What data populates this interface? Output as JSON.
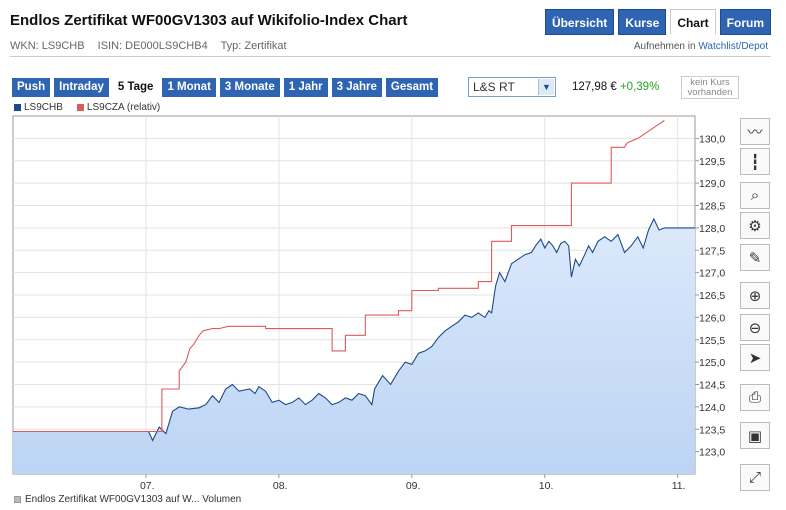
{
  "header": {
    "title": "Endlos Zertifikat WF00GV1303 auf Wikifolio-Index Chart",
    "wkn": "WKN: LS9CHB",
    "isin": "ISIN: DE000LS9CHB4",
    "typ": "Typ: Zertifikat"
  },
  "nav": {
    "tabs": [
      "Übersicht",
      "Kurse",
      "Chart",
      "Forum"
    ],
    "active": "Chart",
    "watch_prefix": "Aufnehmen in",
    "watch_link": "Watchlist/Depot"
  },
  "range_tabs": [
    "Push",
    "Intraday",
    "5 Tage",
    "1 Monat",
    "3 Monate",
    "1 Jahr",
    "3 Jahre",
    "Gesamt"
  ],
  "range_active": "5 Tage",
  "exchange": {
    "value": "L&S RT",
    "arrow": "▼"
  },
  "quote": {
    "price": "127,98 €",
    "change": "+0,39%"
  },
  "no_quote": {
    "line1": "kein Kurs",
    "line2": "vorhanden"
  },
  "legend": [
    {
      "name": "LS9CHB",
      "color": "#1c4a8c"
    },
    {
      "name": "LS9CZA (relativ)",
      "color": "#e05a5a"
    }
  ],
  "bottom_label": "Endlos Zertifikat WF00GV1303 auf W... Volumen",
  "tools": [
    "line-chart-icon",
    "ohlc-chart-icon",
    "indicator-icon",
    "settings-icon",
    "draw-tool-icon",
    "zoom-in-icon",
    "zoom-out-icon",
    "cursor-icon",
    "print-icon",
    "save-icon",
    "fullscreen-icon"
  ],
  "colors": {
    "primary_series": "#1c4a8c",
    "relative_series": "#e05a5a",
    "area_fill": "#c6daf5",
    "accent": "#2e64b2",
    "positive": "#27a327"
  },
  "chart_data": {
    "type": "line",
    "x_tick_labels": [
      "07.",
      "08.",
      "09.",
      "10.",
      "11."
    ],
    "x_ticks": [
      1,
      2,
      3,
      4,
      5
    ],
    "xlim": [
      0,
      5.13
    ],
    "ylim": [
      122.5,
      130.5
    ],
    "y_ticks": [
      "123,0",
      "123,5",
      "124,0",
      "124,5",
      "125,0",
      "125,5",
      "126,0",
      "126,5",
      "127,0",
      "127,5",
      "128,0",
      "128,5",
      "129,0",
      "129,5",
      "130,0"
    ],
    "y_tick_values": [
      123,
      123.5,
      124,
      124.5,
      125,
      125.5,
      126,
      126.5,
      127,
      127.5,
      128,
      128.5,
      129,
      129.5,
      130
    ],
    "grid": true,
    "series": [
      {
        "name": "LS9CHB",
        "area": true,
        "points": [
          [
            0,
            123.45
          ],
          [
            1.02,
            123.45
          ],
          [
            1.05,
            123.25
          ],
          [
            1.1,
            123.55
          ],
          [
            1.15,
            123.4
          ],
          [
            1.2,
            123.9
          ],
          [
            1.25,
            124.0
          ],
          [
            1.32,
            123.95
          ],
          [
            1.4,
            123.98
          ],
          [
            1.45,
            124.05
          ],
          [
            1.5,
            124.25
          ],
          [
            1.55,
            124.1
          ],
          [
            1.6,
            124.4
          ],
          [
            1.65,
            124.5
          ],
          [
            1.7,
            124.35
          ],
          [
            1.78,
            124.4
          ],
          [
            1.82,
            124.3
          ],
          [
            1.85,
            124.45
          ],
          [
            1.9,
            124.35
          ],
          [
            1.95,
            124.1
          ],
          [
            2.0,
            124.15
          ],
          [
            2.05,
            124.05
          ],
          [
            2.1,
            124.1
          ],
          [
            2.15,
            124.2
          ],
          [
            2.2,
            124.05
          ],
          [
            2.25,
            124.15
          ],
          [
            2.3,
            124.3
          ],
          [
            2.35,
            124.2
          ],
          [
            2.4,
            124.05
          ],
          [
            2.45,
            124.1
          ],
          [
            2.5,
            124.2
          ],
          [
            2.55,
            124.15
          ],
          [
            2.6,
            124.3
          ],
          [
            2.65,
            124.25
          ],
          [
            2.7,
            124.05
          ],
          [
            2.72,
            124.4
          ],
          [
            2.78,
            124.7
          ],
          [
            2.84,
            124.5
          ],
          [
            2.9,
            124.8
          ],
          [
            2.95,
            125.0
          ],
          [
            3.0,
            124.95
          ],
          [
            3.05,
            125.2
          ],
          [
            3.1,
            125.25
          ],
          [
            3.15,
            125.35
          ],
          [
            3.2,
            125.55
          ],
          [
            3.25,
            125.7
          ],
          [
            3.3,
            125.8
          ],
          [
            3.35,
            125.9
          ],
          [
            3.4,
            126.05
          ],
          [
            3.45,
            126.0
          ],
          [
            3.5,
            126.1
          ],
          [
            3.55,
            126.0
          ],
          [
            3.58,
            126.15
          ],
          [
            3.6,
            126.1
          ],
          [
            3.63,
            126.7
          ],
          [
            3.66,
            127.0
          ],
          [
            3.7,
            126.8
          ],
          [
            3.75,
            127.2
          ],
          [
            3.8,
            127.3
          ],
          [
            3.85,
            127.4
          ],
          [
            3.9,
            127.45
          ],
          [
            3.93,
            127.6
          ],
          [
            3.97,
            127.75
          ],
          [
            4.0,
            127.55
          ],
          [
            4.03,
            127.7
          ],
          [
            4.06,
            127.6
          ],
          [
            4.09,
            127.45
          ],
          [
            4.12,
            127.65
          ],
          [
            4.15,
            127.7
          ],
          [
            4.18,
            127.6
          ],
          [
            4.2,
            126.9
          ],
          [
            4.23,
            127.3
          ],
          [
            4.26,
            127.15
          ],
          [
            4.3,
            127.4
          ],
          [
            4.33,
            127.6
          ],
          [
            4.36,
            127.45
          ],
          [
            4.4,
            127.7
          ],
          [
            4.45,
            127.8
          ],
          [
            4.5,
            127.7
          ],
          [
            4.55,
            127.85
          ],
          [
            4.6,
            127.45
          ],
          [
            4.65,
            127.6
          ],
          [
            4.7,
            127.8
          ],
          [
            4.74,
            127.55
          ],
          [
            4.78,
            127.95
          ],
          [
            4.82,
            128.2
          ],
          [
            4.86,
            127.95
          ],
          [
            4.9,
            128.0
          ],
          [
            5.13,
            128.0
          ]
        ]
      },
      {
        "name": "LS9CZA (relativ)",
        "area": false,
        "points": [
          [
            0,
            123.45
          ],
          [
            1.12,
            123.45
          ],
          [
            1.12,
            124.4
          ],
          [
            1.25,
            124.4
          ],
          [
            1.25,
            124.8
          ],
          [
            1.3,
            125.0
          ],
          [
            1.33,
            125.3
          ],
          [
            1.36,
            125.4
          ],
          [
            1.4,
            125.6
          ],
          [
            1.43,
            125.7
          ],
          [
            1.5,
            125.75
          ],
          [
            1.55,
            125.75
          ],
          [
            1.62,
            125.8
          ],
          [
            1.9,
            125.8
          ],
          [
            1.9,
            125.75
          ],
          [
            2.4,
            125.75
          ],
          [
            2.4,
            125.25
          ],
          [
            2.5,
            125.25
          ],
          [
            2.5,
            125.6
          ],
          [
            2.65,
            125.6
          ],
          [
            2.65,
            126.05
          ],
          [
            2.9,
            126.05
          ],
          [
            2.9,
            126.15
          ],
          [
            3.0,
            126.15
          ],
          [
            3.0,
            126.6
          ],
          [
            3.2,
            126.6
          ],
          [
            3.2,
            126.65
          ],
          [
            3.5,
            126.65
          ],
          [
            3.5,
            126.8
          ],
          [
            3.6,
            126.8
          ],
          [
            3.6,
            127.7
          ],
          [
            3.75,
            127.7
          ],
          [
            3.75,
            128.05
          ],
          [
            4.2,
            128.05
          ],
          [
            4.2,
            129.0
          ],
          [
            4.5,
            129.0
          ],
          [
            4.5,
            129.8
          ],
          [
            4.6,
            129.8
          ],
          [
            4.62,
            129.9
          ],
          [
            4.7,
            130.0
          ],
          [
            4.75,
            130.1
          ],
          [
            4.8,
            130.2
          ],
          [
            4.85,
            130.3
          ],
          [
            4.9,
            130.4
          ]
        ]
      }
    ]
  }
}
